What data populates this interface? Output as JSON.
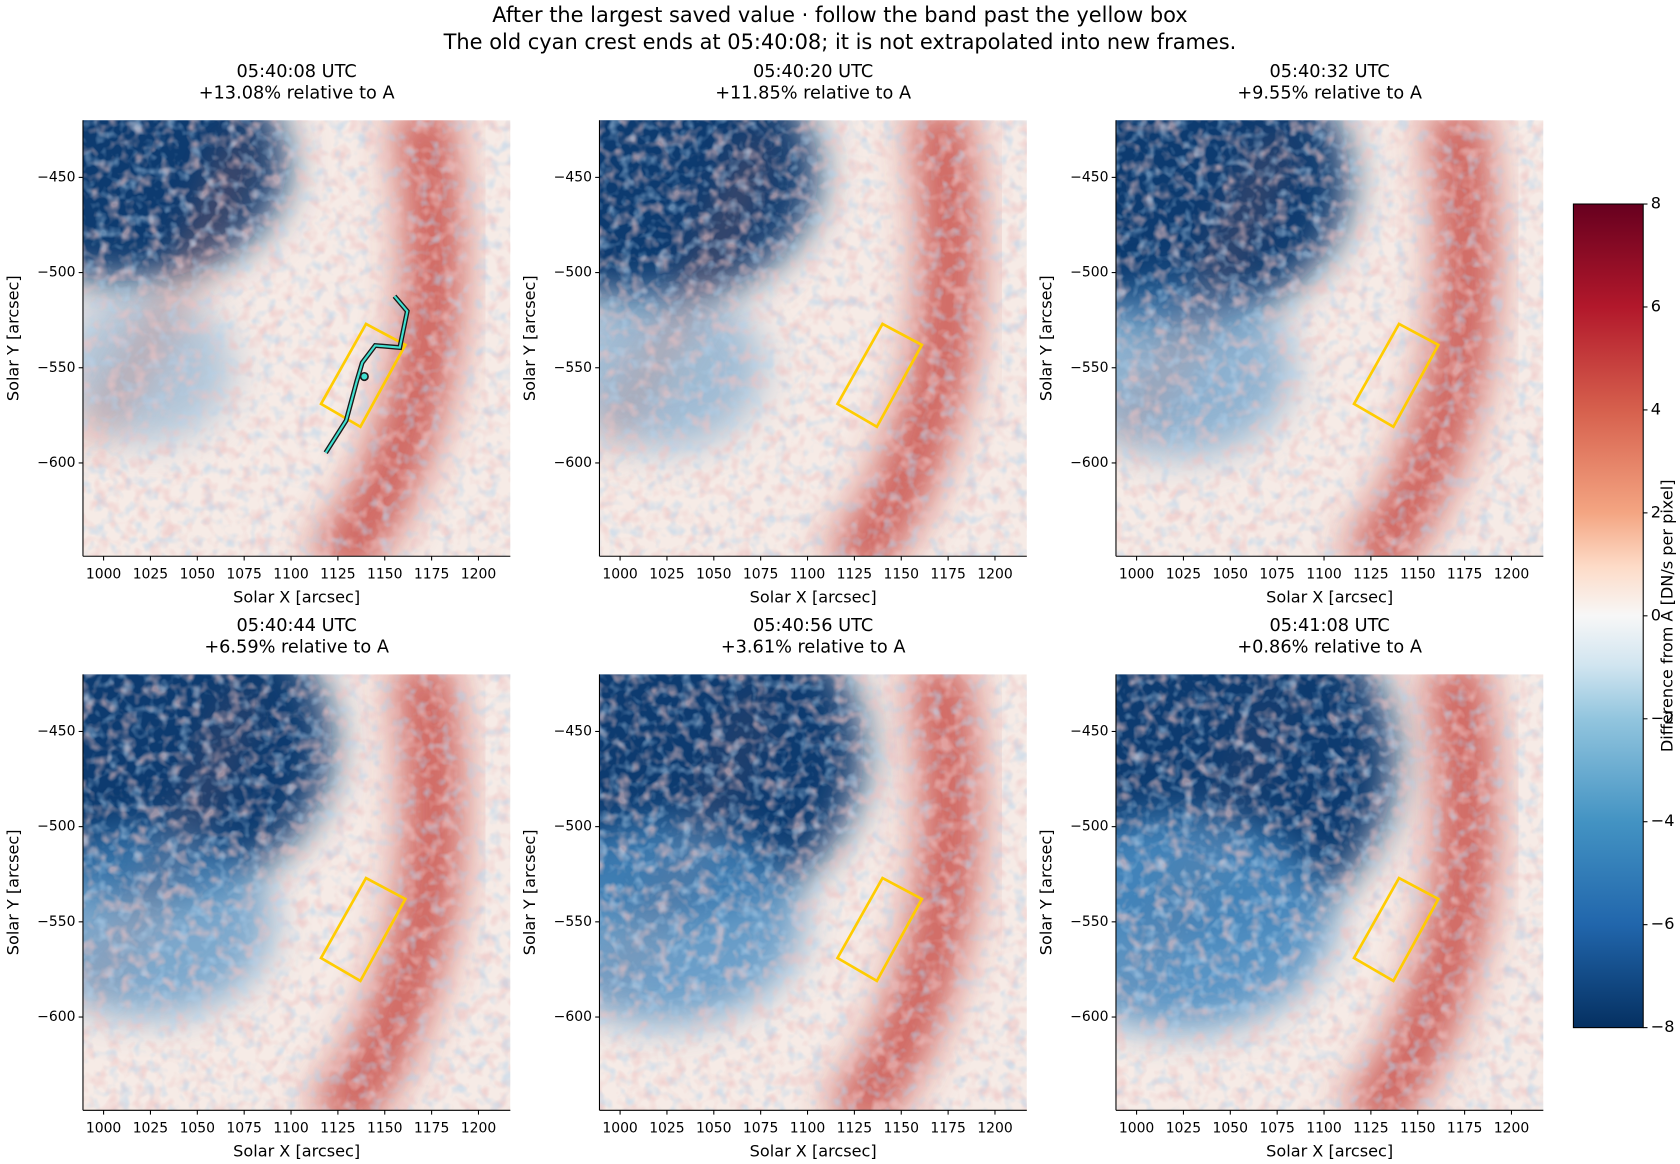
{
  "chart_data": {
    "type": "heatmap",
    "title": "After the largest saved value · follow the band past the yellow box",
    "subtitle": "The old cyan crest ends at 05:40:08; it is not extrapolated into new frames.",
    "xlabel": "Solar X [arcsec]",
    "ylabel": "Solar Y [arcsec]",
    "xlim": [
      989,
      1217
    ],
    "ylim": [
      -649,
      -420
    ],
    "xticks": [
      1000,
      1025,
      1050,
      1075,
      1100,
      1125,
      1150,
      1175,
      1200
    ],
    "yticks": [
      {
        "value": -450,
        "label": "−450"
      },
      {
        "value": -500,
        "label": "−500"
      },
      {
        "value": -550,
        "label": "−550"
      },
      {
        "value": -600,
        "label": "−600"
      }
    ],
    "box": {
      "x": [
        1140,
        1161,
        1137,
        1116
      ],
      "y": [
        -527,
        -538,
        -581,
        -569
      ],
      "color": "#ffcc00"
    },
    "panels": [
      {
        "time": "05:40:08 UTC",
        "change": "+13.08% relative to A",
        "crest": {
          "color": "#40e0d0",
          "x": [
            1118.5,
            1129.4,
            1135.1,
            1138,
            1144.9,
            1158,
            1162,
            1155.2
          ],
          "y": [
            -594.6,
            -577.7,
            -556.9,
            -547.3,
            -538.3,
            -539.4,
            -520.3,
            -512.4
          ],
          "point": {
            "x": 1139.1,
            "y": -554.6
          }
        }
      },
      {
        "time": "05:40:20 UTC",
        "change": "+11.85% relative to A"
      },
      {
        "time": "05:40:32 UTC",
        "change": "+9.55% relative to A"
      },
      {
        "time": "05:40:44 UTC",
        "change": "+6.59% relative to A"
      },
      {
        "time": "05:40:56 UTC",
        "change": "+3.61% relative to A"
      },
      {
        "time": "05:41:08 UTC",
        "change": "+0.86% relative to A"
      }
    ],
    "colorbar": {
      "label": "Difference from A [DN/s per pixel]",
      "lim": [
        -8,
        8
      ],
      "ticks": [
        {
          "value": -8,
          "label": "−8"
        },
        {
          "value": -6,
          "label": "−6"
        },
        {
          "value": -4,
          "label": "−4"
        },
        {
          "value": -2,
          "label": "−2"
        },
        0,
        2,
        4,
        6,
        8
      ]
    }
  }
}
